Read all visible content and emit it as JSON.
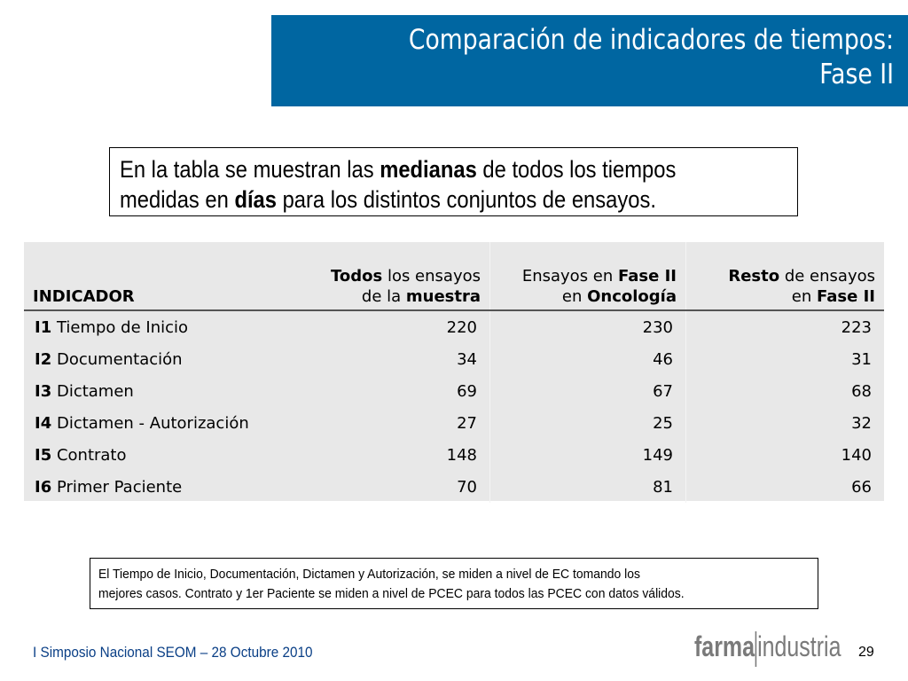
{
  "title": {
    "line1": "Comparación de indicadores de tiempos:",
    "line2": "Fase II"
  },
  "intro": {
    "part1": "En la tabla se muestran las ",
    "bold1": "medianas",
    "part2": " de todos los tiempos",
    "part3": "medidas en ",
    "bold2": "días",
    "part4": " para los distintos conjuntos de ensayos."
  },
  "table": {
    "headers": {
      "indicator": "INDICADOR",
      "col1": {
        "b1": "Todos",
        "t1": " los ensayos",
        "t2": "de la ",
        "b2": "muestra"
      },
      "col2": {
        "t1": "Ensayos en ",
        "b1": "Fase II",
        "t2": "en ",
        "b2": "Oncología"
      },
      "col3": {
        "b1": "Resto",
        "t1": " de ensayos",
        "t2": "en ",
        "b2": "Fase II"
      }
    },
    "rows": [
      {
        "code": "I1",
        "name": " Tiempo de Inicio",
        "v1": "220",
        "v2": "230",
        "v3": "223"
      },
      {
        "code": "I2",
        "name": " Documentación",
        "v1": "34",
        "v2": "46",
        "v3": "31"
      },
      {
        "code": "I3",
        "name": " Dictamen",
        "v1": "69",
        "v2": "67",
        "v3": "68"
      },
      {
        "code": "I4",
        "name": " Dictamen - Autorización",
        "v1": "27",
        "v2": "25",
        "v3": "32"
      },
      {
        "code": "I5",
        "name": " Contrato",
        "v1": "148",
        "v2": "149",
        "v3": "140"
      },
      {
        "code": "I6",
        "name": " Primer Paciente",
        "v1": "70",
        "v2": "81",
        "v3": "66"
      }
    ]
  },
  "note": {
    "line1": "El Tiempo de Inicio, Documentación, Dictamen y Autorización, se miden a nivel de EC tomando los",
    "line2": "mejores casos. Contrato y 1er Paciente se miden a nivel de PCEC para todos las PCEC con datos válidos."
  },
  "footer": {
    "text": "I Simposio Nacional SEOM – 28 Octubre 2010"
  },
  "logo": {
    "bold": "farma",
    "light": "industria"
  },
  "page_number": "29",
  "colors": {
    "title_bg": "#0066a1",
    "footer_text": "#0a3f86",
    "table_bg": "#e8e8e8"
  }
}
